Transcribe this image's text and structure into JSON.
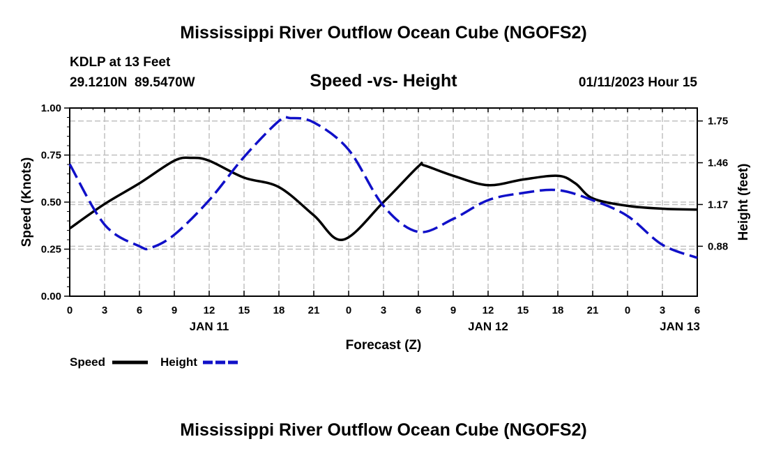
{
  "header": {
    "title": "Mississippi River Outflow Ocean Cube (NGOFS2)",
    "station_line": "KDLP at 13 Feet",
    "coords_line": "29.1210N  89.5470W",
    "subtitle": "Speed -vs- Height",
    "datetime": "01/11/2023 Hour 15"
  },
  "footer": {
    "title": "Mississippi River Outflow Ocean Cube (NGOFS2)"
  },
  "legend": {
    "speed_label": "Speed",
    "height_label": "Height"
  },
  "colors": {
    "speed": "#000000",
    "height": "#1010c8",
    "grid": "#c0c0c0"
  },
  "chart_data": {
    "type": "line",
    "title": "Speed -vs- Height",
    "xlabel": "Forecast (Z)",
    "ylabel": "Speed (Knots)",
    "y2label": "Height (feet)",
    "x_unit": "hours since JAN 11 00Z",
    "xlim": [
      0,
      54
    ],
    "ylim": [
      0,
      1
    ],
    "y2lim": [
      0.5333,
      1.84
    ],
    "x_ticks": [
      0,
      3,
      6,
      9,
      12,
      15,
      18,
      21,
      24,
      27,
      30,
      33,
      36,
      39,
      42,
      45,
      48,
      51,
      54
    ],
    "x_tick_labels": [
      "0",
      "3",
      "6",
      "9",
      "12",
      "15",
      "18",
      "21",
      "0",
      "3",
      "6",
      "9",
      "12",
      "15",
      "18",
      "21",
      "0",
      "3",
      "6"
    ],
    "date_labels": [
      {
        "x": 12,
        "label": "JAN 11"
      },
      {
        "x": 36,
        "label": "JAN 12"
      },
      {
        "x": 52.5,
        "label": "JAN 13"
      }
    ],
    "y_ticks": [
      0,
      0.25,
      0.5,
      0.75,
      1.0
    ],
    "y_tick_labels": [
      "0.00",
      "0.25",
      "0.50",
      "0.75",
      "1.00"
    ],
    "y2_ticks": [
      0.88,
      1.17,
      1.46,
      1.75
    ],
    "y2_tick_labels": [
      "0.88",
      "1.17",
      "1.46",
      "1.75"
    ],
    "series": [
      {
        "name": "Speed",
        "axis": "left",
        "style": "solid",
        "x": [
          0,
          3,
          6,
          9,
          10.5,
          12,
          15,
          18,
          21,
          23.5,
          27,
          30,
          30.5,
          33,
          36,
          39,
          42,
          43.5,
          45,
          48,
          51,
          54
        ],
        "y": [
          0.36,
          0.49,
          0.6,
          0.72,
          0.735,
          0.72,
          0.63,
          0.58,
          0.43,
          0.3,
          0.5,
          0.69,
          0.695,
          0.64,
          0.59,
          0.62,
          0.64,
          0.6,
          0.52,
          0.48,
          0.465,
          0.46
        ]
      },
      {
        "name": "Height",
        "axis": "right",
        "style": "dashed",
        "x": [
          0,
          3,
          6,
          7,
          9,
          12,
          15,
          18,
          19,
          21,
          24,
          27,
          30,
          33,
          36,
          39,
          42,
          45,
          48,
          51,
          54
        ],
        "y": [
          1.45,
          1.03,
          0.88,
          0.87,
          0.96,
          1.2,
          1.5,
          1.75,
          1.77,
          1.74,
          1.55,
          1.16,
          0.98,
          1.07,
          1.2,
          1.25,
          1.27,
          1.2,
          1.09,
          0.89,
          0.8
        ]
      }
    ]
  }
}
